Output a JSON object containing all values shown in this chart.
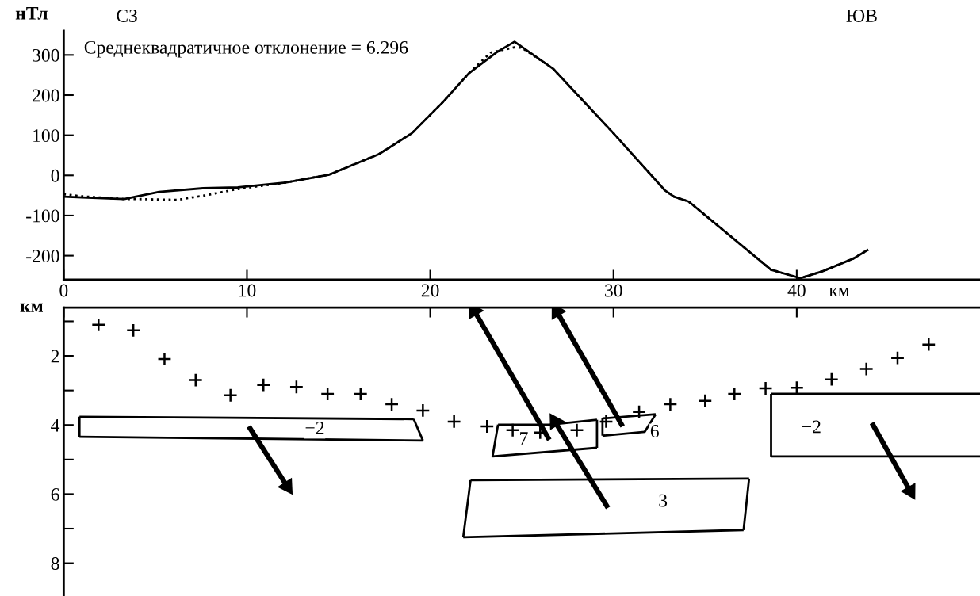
{
  "chart_data": [
    {
      "type": "line",
      "xlabel": "км",
      "ylabel": "нТл",
      "xlim": [
        0,
        50
      ],
      "xticks": [
        0,
        10,
        20,
        30,
        40
      ],
      "ylim": [
        -260,
        360
      ],
      "yticks": [
        -200,
        -100,
        0,
        100,
        200,
        300
      ],
      "grid": false,
      "legend": false,
      "annotations": [
        "СЗ",
        "ЮВ",
        "Среднеквадратичное отклонение = 6.296"
      ],
      "series": [
        {
          "color": "#000000",
          "line_style": "solid",
          "x": [
            0,
            1,
            3.3,
            5.2,
            7.6,
            9.5,
            12.1,
            14.5,
            17.2,
            19,
            20.7,
            22.1,
            23.6,
            24.6,
            26.7,
            30,
            32.8,
            33.3,
            34.1,
            38.6,
            40.2,
            41.4,
            43.1,
            43.9
          ],
          "values": [
            -53,
            -55,
            -59,
            -41,
            -32,
            -30,
            -18,
            2,
            53,
            105,
            183,
            254,
            306,
            333,
            266,
            105,
            -37,
            -53,
            -65,
            -235,
            -256,
            -239,
            -207,
            -185
          ]
        },
        {
          "color": "#000000",
          "line_style": "dotted",
          "x": [
            0,
            1,
            3.3,
            4.1,
            6.2,
            7.8,
            9.5,
            12.1,
            14.5,
            17.2,
            19,
            20.7,
            22.1,
            23.3,
            24.6,
            25,
            26.7,
            30,
            32.8,
            33.3,
            34.1,
            38.6,
            40.2,
            41.4,
            43.1,
            43.9
          ],
          "values": [
            -47,
            -52,
            -59,
            -59,
            -61,
            -49,
            -34,
            -18,
            2,
            53,
            105,
            183,
            254,
            306,
            319,
            318,
            266,
            105,
            -37,
            -53,
            -65,
            -235,
            -256,
            -239,
            -207,
            -185
          ]
        }
      ]
    },
    {
      "type": "scatter",
      "ylabel": "км",
      "xlim": [
        0,
        50
      ],
      "xticks": [
        0,
        10,
        20,
        30,
        40
      ],
      "ylim": [
        8.95,
        0.6
      ],
      "yticks": [
        {
          "value": 1,
          "label": null
        },
        2,
        {
          "value": 3,
          "label": null
        },
        4,
        {
          "value": 5,
          "label": null
        },
        6,
        {
          "value": 7,
          "label": null
        },
        8
      ],
      "tick_labels": "y",
      "grid": false,
      "legend": false,
      "annotations": [
        "−2",
        "7",
        "6",
        "3",
        "−2"
      ],
      "series": [
        {
          "type": "scatter",
          "color": "#000000",
          "marker": "cross",
          "x": [
            1.9,
            3.8,
            5.5,
            7.2,
            9.1,
            10.9,
            12.7,
            14.4,
            16.2,
            17.9,
            19.6,
            21.3,
            23.1,
            24.5,
            26.0,
            28.0,
            29.6,
            31.4,
            33.1,
            35.0,
            36.6,
            38.3,
            40.0,
            41.9,
            43.8,
            45.5,
            47.2
          ],
          "values": [
            1.1,
            1.26,
            2.09,
            2.7,
            3.14,
            2.84,
            2.9,
            3.1,
            3.1,
            3.4,
            3.58,
            3.9,
            4.04,
            4.15,
            4.22,
            4.15,
            3.9,
            3.62,
            3.4,
            3.3,
            3.1,
            2.94,
            2.92,
            2.68,
            2.38,
            2.06,
            1.67
          ]
        },
        {
          "type": "line",
          "color": "#000000",
          "line_style": "solid",
          "marker": "none",
          "x": [
            0.86,
            19.1
          ],
          "values": [
            3.76,
            3.83
          ]
        },
        {
          "type": "line",
          "color": "#000000",
          "line_style": "solid",
          "marker": "none",
          "x": [
            19.1,
            19.6
          ],
          "values": [
            3.83,
            4.45
          ]
        },
        {
          "type": "line",
          "color": "#000000",
          "line_style": "solid",
          "marker": "none",
          "x": [
            0.86,
            19.6
          ],
          "values": [
            4.34,
            4.45
          ]
        },
        {
          "type": "line",
          "color": "#000000",
          "line_style": "solid",
          "marker": "none",
          "x": [
            0.86,
            0.86
          ],
          "values": [
            3.76,
            4.34
          ]
        },
        {
          "type": "line",
          "color": "#000000",
          "line_style": "solid",
          "marker": "none",
          "x": [
            23.7,
            26.5,
            29.1
          ],
          "values": [
            3.99,
            3.99,
            3.85
          ]
        },
        {
          "type": "line",
          "color": "#000000",
          "line_style": "solid",
          "marker": "none",
          "x": [
            29.1,
            29.1
          ],
          "values": [
            3.85,
            4.66
          ]
        },
        {
          "type": "line",
          "color": "#000000",
          "line_style": "solid",
          "marker": "none",
          "x": [
            23.4,
            29.1
          ],
          "values": [
            4.91,
            4.66
          ]
        },
        {
          "type": "line",
          "color": "#000000",
          "line_style": "solid",
          "marker": "none",
          "x": [
            23.4,
            23.7
          ],
          "values": [
            4.91,
            3.99
          ]
        },
        {
          "type": "line",
          "color": "#000000",
          "line_style": "solid",
          "marker": "none",
          "x": [
            29.4,
            32.3
          ],
          "values": [
            3.81,
            3.69
          ]
        },
        {
          "type": "line",
          "color": "#000000",
          "line_style": "solid",
          "marker": "none",
          "x": [
            31.7,
            32.3
          ],
          "values": [
            4.2,
            3.69
          ]
        },
        {
          "type": "line",
          "color": "#000000",
          "line_style": "solid",
          "marker": "none",
          "x": [
            29.4,
            31.7
          ],
          "values": [
            4.31,
            4.2
          ]
        },
        {
          "type": "line",
          "color": "#000000",
          "line_style": "solid",
          "marker": "none",
          "x": [
            29.4,
            29.4
          ],
          "values": [
            3.81,
            4.31
          ]
        },
        {
          "type": "line",
          "color": "#000000",
          "line_style": "solid",
          "marker": "none",
          "x": [
            22.2,
            37.4
          ],
          "values": [
            5.6,
            5.55
          ]
        },
        {
          "type": "line",
          "color": "#000000",
          "line_style": "solid",
          "marker": "none",
          "x": [
            37.1,
            37.4
          ],
          "values": [
            7.04,
            5.55
          ]
        },
        {
          "type": "line",
          "color": "#000000",
          "line_style": "solid",
          "marker": "none",
          "x": [
            21.8,
            37.1
          ],
          "values": [
            7.25,
            7.04
          ]
        },
        {
          "type": "line",
          "color": "#000000",
          "line_style": "solid",
          "marker": "none",
          "x": [
            21.8,
            22.2
          ],
          "values": [
            7.25,
            5.6
          ]
        },
        {
          "type": "line",
          "color": "#000000",
          "line_style": "solid",
          "marker": "none",
          "x": [
            38.6,
            50
          ],
          "values": [
            3.1,
            3.1
          ]
        },
        {
          "type": "line",
          "color": "#000000",
          "line_style": "solid",
          "marker": "none",
          "x": [
            38.6,
            50
          ],
          "values": [
            4.91,
            4.91
          ]
        },
        {
          "type": "line",
          "color": "#000000",
          "line_style": "solid",
          "marker": "none",
          "x": [
            38.6,
            38.6
          ],
          "values": [
            3.1,
            4.91
          ]
        },
        {
          "type": "line",
          "color": "#000000",
          "line_style": "solid",
          "marker": "triangle",
          "x": [
            10.1,
            12.2
          ],
          "values": [
            4.04,
            5.78
          ]
        },
        {
          "type": "line",
          "color": "#000000",
          "line_style": "solid",
          "marker": "triangle",
          "x": [
            26.5,
            22.4
          ],
          "values": [
            4.43,
            0.69
          ]
        },
        {
          "type": "line",
          "color": "#000000",
          "line_style": "solid",
          "marker": "triangle",
          "x": [
            30.5,
            26.9
          ],
          "values": [
            4.04,
            0.71
          ]
        },
        {
          "type": "line",
          "color": "#000000",
          "line_style": "solid",
          "marker": "triangle",
          "x": [
            29.7,
            26.8
          ],
          "values": [
            6.4,
            3.9
          ]
        },
        {
          "type": "line",
          "color": "#000000",
          "line_style": "solid",
          "marker": "triangle",
          "x": [
            44.1,
            46.2
          ],
          "values": [
            3.94,
            5.92
          ]
        }
      ]
    }
  ]
}
